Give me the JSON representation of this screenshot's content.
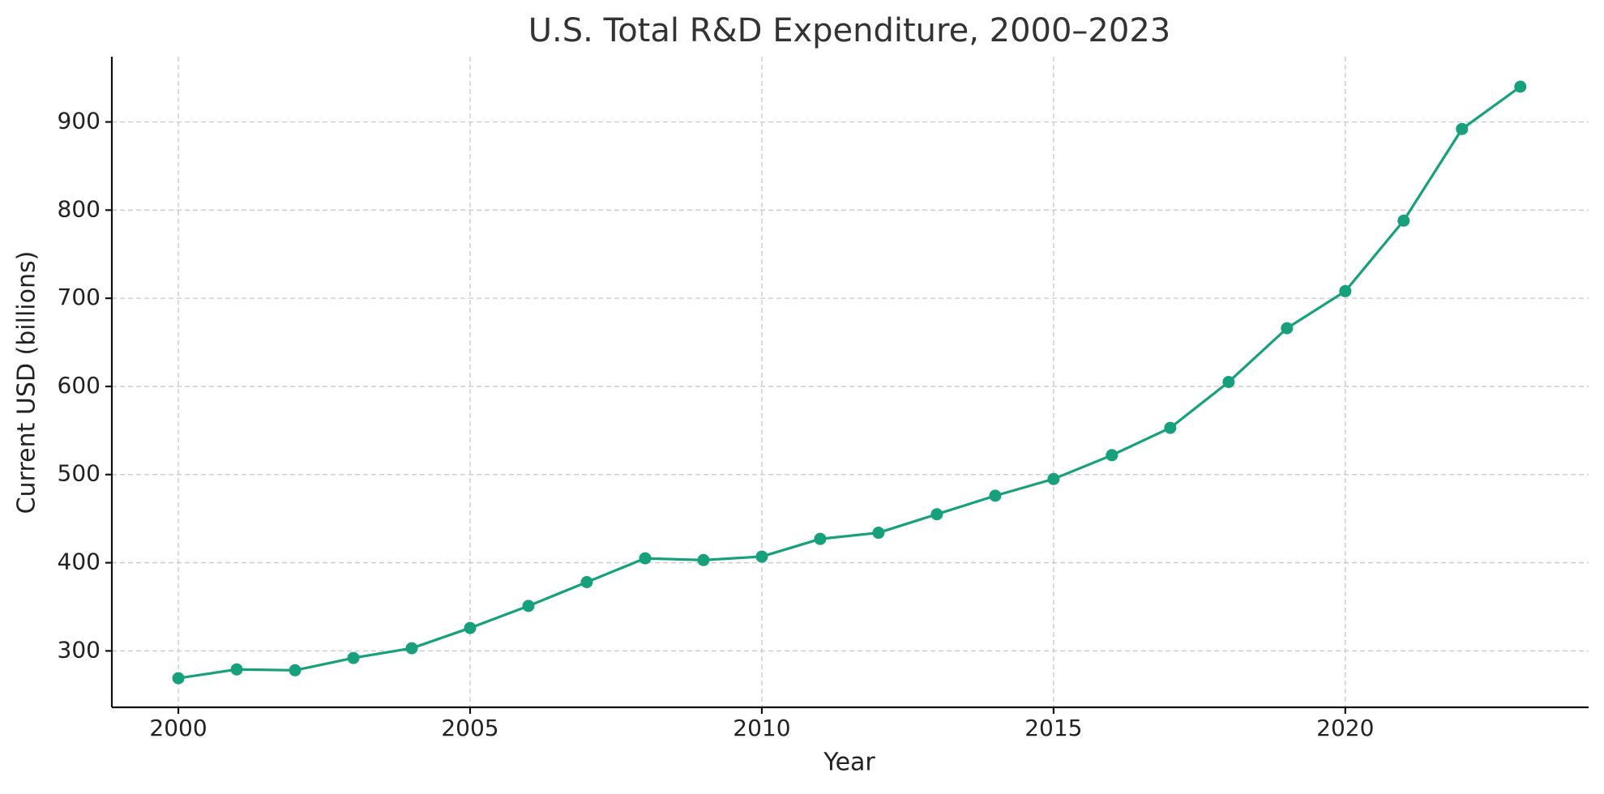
{
  "chart_data": {
    "type": "line",
    "title": "U.S. Total R&D Expenditure, 2000–2023",
    "x_label": "Year",
    "y_label": "Current USD (billions)",
    "x": [
      2000,
      2001,
      2002,
      2003,
      2004,
      2005,
      2006,
      2007,
      2008,
      2009,
      2010,
      2011,
      2012,
      2013,
      2014,
      2015,
      2016,
      2017,
      2018,
      2019,
      2020,
      2021,
      2022,
      2023
    ],
    "series": [
      {
        "name": "Total R&D",
        "color": "#16a07c",
        "values": [
          269,
          279,
          278,
          292,
          303,
          326,
          351,
          378,
          405,
          403,
          407,
          427,
          434,
          455,
          476,
          495,
          522,
          553,
          605,
          666,
          708,
          788,
          892,
          940
        ]
      }
    ],
    "xlim": [
      1998.86,
      2024.17
    ],
    "xticks": [
      2000,
      2005,
      2010,
      2015,
      2020
    ],
    "ylim": [
      236,
      974
    ],
    "yticks": [
      300,
      400,
      500,
      600,
      700,
      800,
      900
    ],
    "grid": true
  }
}
